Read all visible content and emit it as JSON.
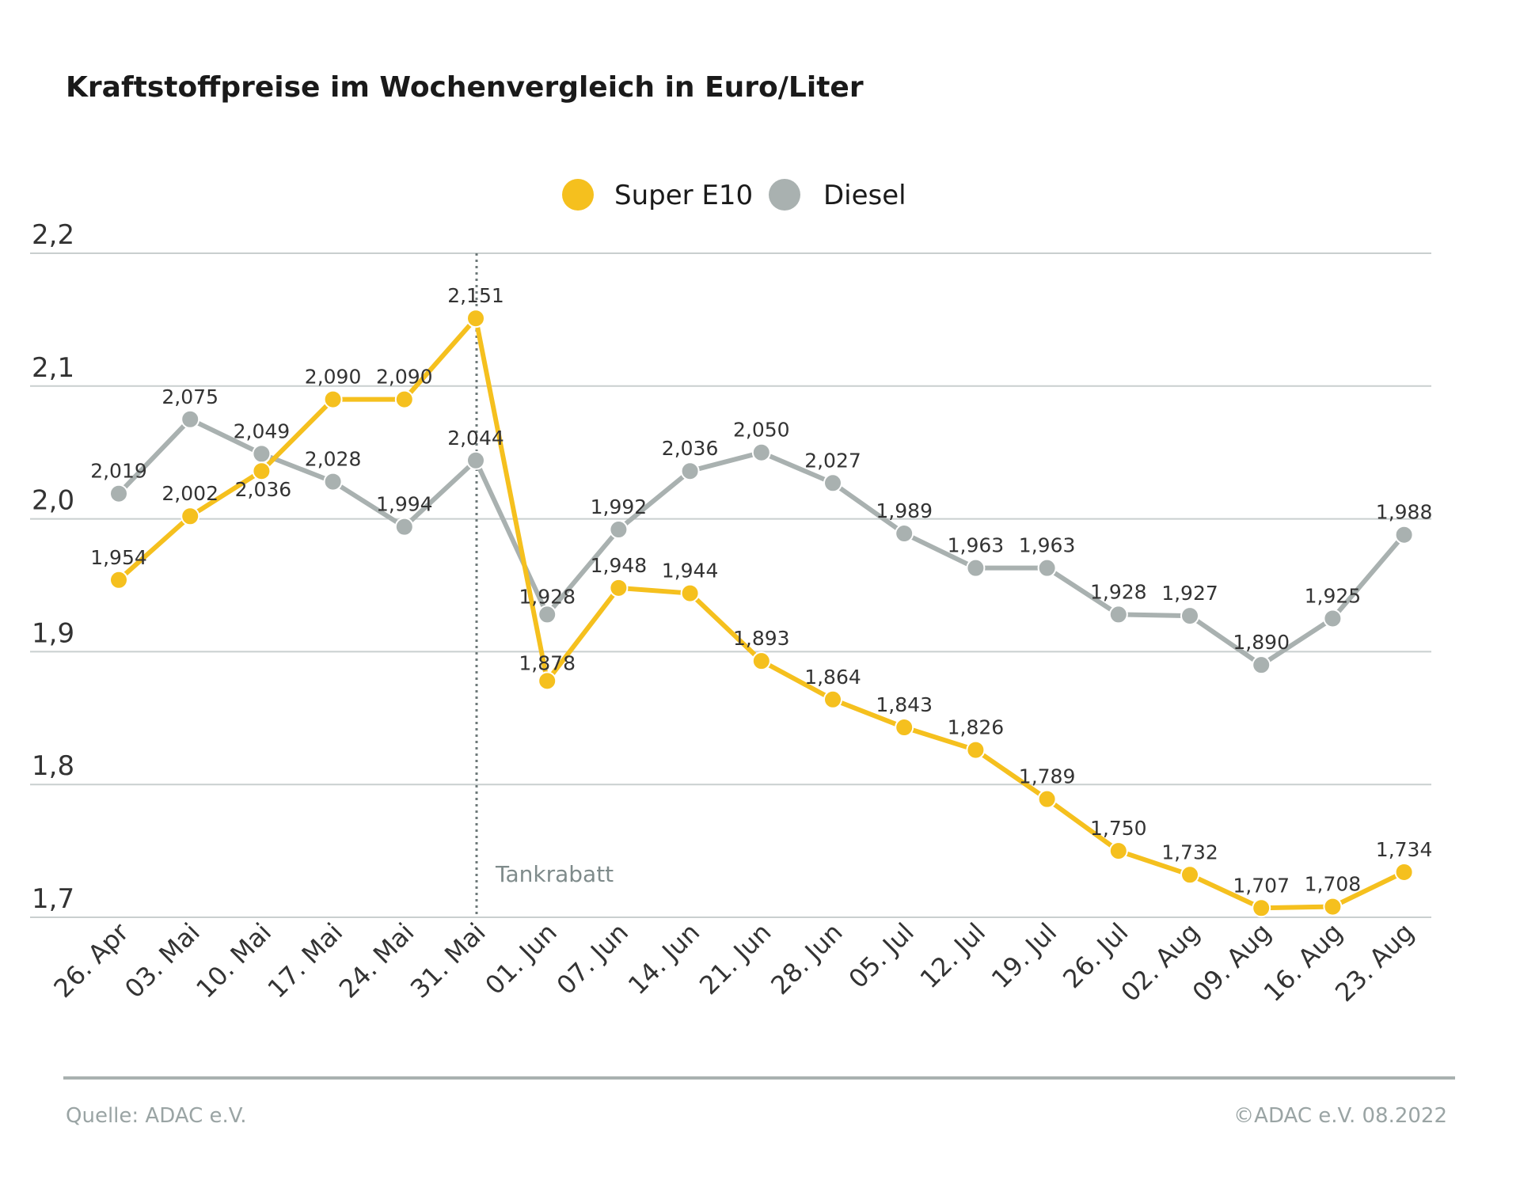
{
  "title": "Kraftstoffpreise im Wochenvergleich in Euro/Liter",
  "footer": {
    "source": "Quelle: ADAC e.V.",
    "copyright": "©ADAC e.V.  08.2022"
  },
  "chart_data": {
    "type": "line",
    "title": "Kraftstoffpreise im Wochenvergleich in Euro/Liter",
    "xlabel": "",
    "ylabel": "",
    "ylim": [
      1.7,
      2.2
    ],
    "yticks": [
      1.7,
      1.8,
      1.9,
      2.0,
      2.1,
      2.2
    ],
    "ytick_labels": [
      "1,7",
      "1,8",
      "1,9",
      "2,0",
      "2,1",
      "2,2"
    ],
    "grid": true,
    "legend_position": "top-center",
    "categories": [
      "26. Apr",
      "03. Mai",
      "10. Mai",
      "17. Mai",
      "24. Mai",
      "31. Mai",
      "01. Jun",
      "07. Jun",
      "14. Jun",
      "21. Jun",
      "28. Jun",
      "05. Jul",
      "12. Jul",
      "19. Jul",
      "26. Jul",
      "02. Aug",
      "09. Aug",
      "16. Aug",
      "23. Aug"
    ],
    "series": [
      {
        "name": "Super E10",
        "color": "#f5c01e",
        "values": [
          1.954,
          2.002,
          2.036,
          2.09,
          2.09,
          2.151,
          1.878,
          1.948,
          1.944,
          1.893,
          1.864,
          1.843,
          1.826,
          1.789,
          1.75,
          1.732,
          1.707,
          1.708,
          1.734
        ],
        "labels": [
          "1,954",
          "2,002",
          "2,036",
          "2,090",
          "2,090",
          "2,151",
          "1,878",
          "1,948",
          "1,944",
          "1,893",
          "1,864",
          "1,843",
          "1,826",
          "1,789",
          "1,750",
          "1,732",
          "1,707",
          "1,708",
          "1,734"
        ]
      },
      {
        "name": "Diesel",
        "color": "#a9b1b0",
        "values": [
          2.019,
          2.075,
          2.049,
          2.028,
          1.994,
          2.044,
          1.928,
          1.992,
          2.036,
          2.05,
          2.027,
          1.989,
          1.963,
          1.963,
          1.928,
          1.927,
          1.89,
          1.925,
          1.988
        ],
        "labels": [
          "2,019",
          "2,075",
          "2,049",
          "2,028",
          "1,994",
          "2,044",
          "1,928",
          "1,992",
          "2,036",
          "2,050",
          "2,027",
          "1,989",
          "1,963",
          "1,963",
          "1,928",
          "1,927",
          "1,890",
          "1,925",
          "1,988"
        ]
      }
    ],
    "annotations": [
      {
        "text": "Tankrabatt",
        "category": "31. Mai",
        "style": "dotted vertical line"
      }
    ]
  }
}
